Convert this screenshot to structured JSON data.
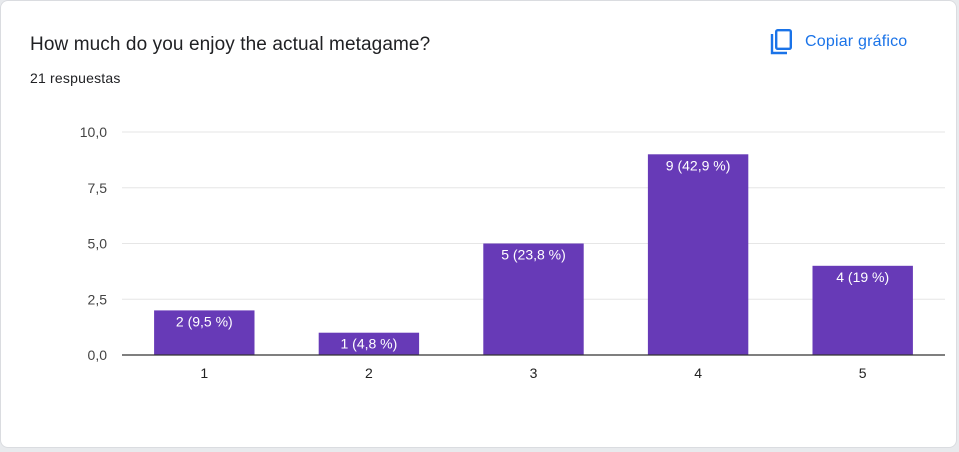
{
  "question": {
    "title": "How much do you enjoy the actual metagame?",
    "response_count": "21 respuestas"
  },
  "actions": {
    "copy_chart_label": "Copiar gráfico",
    "copy_icon": "copy-icon"
  },
  "colors": {
    "bar": "#673ab7",
    "accent": "#1a73e8",
    "bar_label": "#ffffff"
  },
  "chart_data": {
    "type": "bar",
    "categories": [
      "1",
      "2",
      "3",
      "4",
      "5"
    ],
    "values": [
      2,
      1,
      5,
      9,
      4
    ],
    "data_labels": [
      "2 (9,5 %)",
      "1 (4,8 %)",
      "5 (23,8 %)",
      "9 (42,9 %)",
      "4 (19 %)"
    ],
    "ylim": [
      0,
      10
    ],
    "yticks": [
      0,
      2.5,
      5,
      7.5,
      10
    ],
    "ytick_labels": [
      "0,0",
      "2,5",
      "5,0",
      "7,5",
      "10,0"
    ],
    "grid": true,
    "legend": "none"
  }
}
